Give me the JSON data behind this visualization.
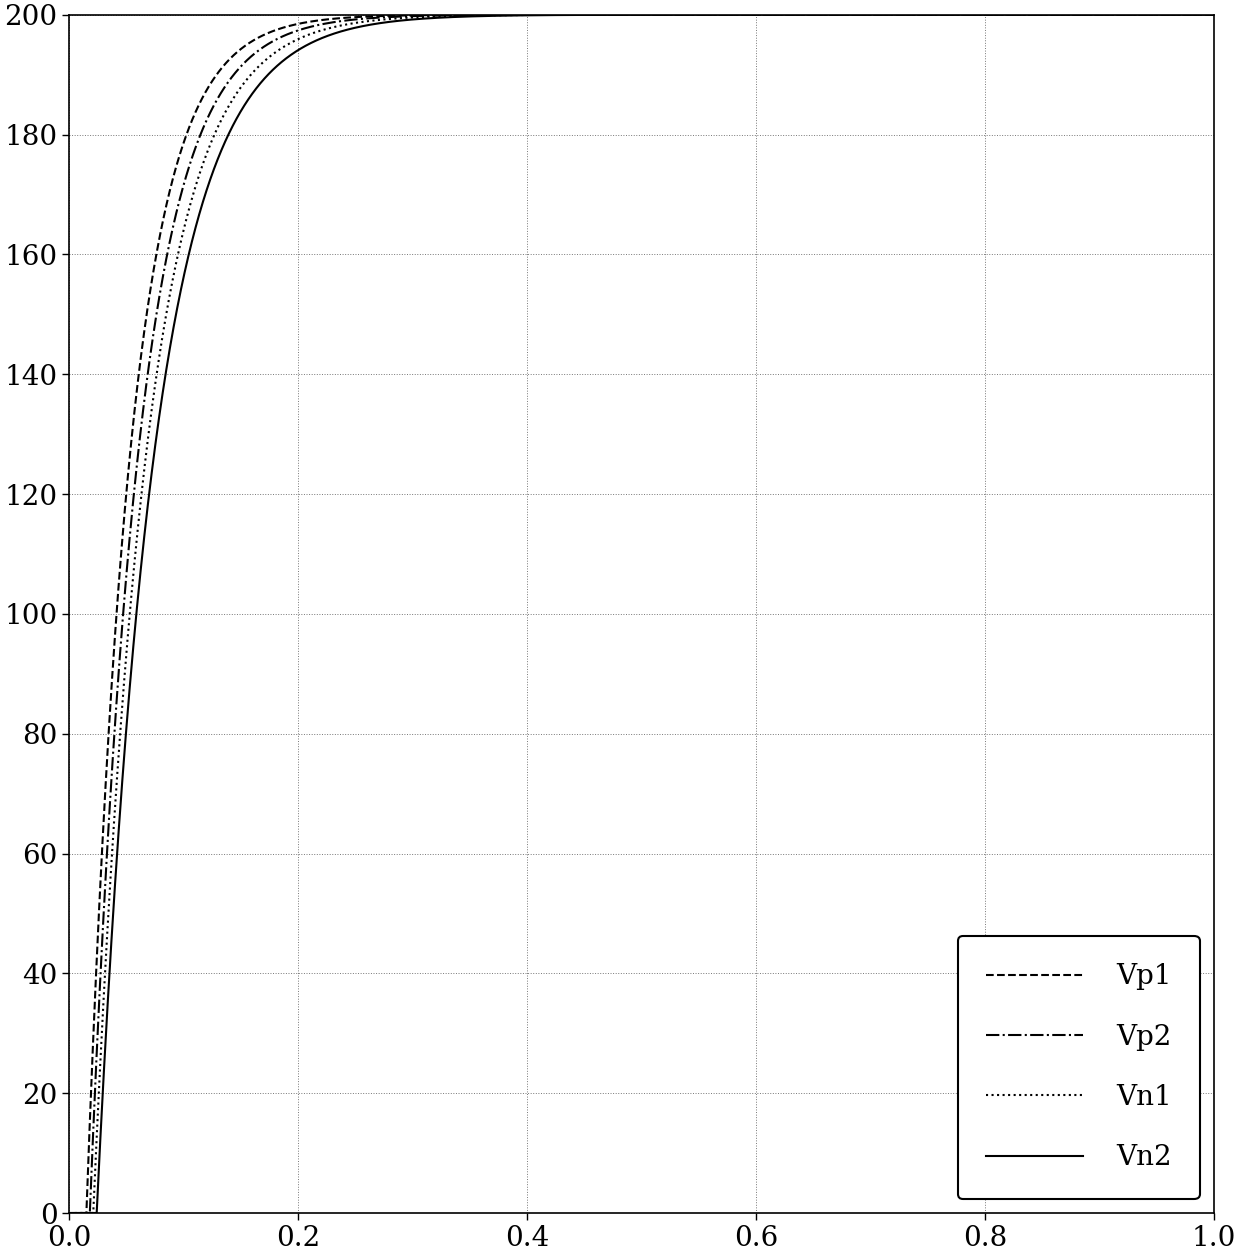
{
  "title": "",
  "xlabel": "",
  "ylabel": "",
  "xlim": [
    0.0,
    1.0
  ],
  "ylim": [
    0,
    200
  ],
  "yticks": [
    0,
    20,
    40,
    60,
    80,
    100,
    120,
    140,
    160,
    180,
    200
  ],
  "xticks": [
    0.0,
    0.2,
    0.4,
    0.6,
    0.8,
    1.0
  ],
  "xtick_labels": [
    "0.0",
    "0.2",
    "0.4",
    "0.6",
    "0.8",
    "1.0"
  ],
  "lines": [
    {
      "label": "Vp1",
      "style": "--",
      "color": "#000000",
      "lw": 1.5,
      "tau": 0.038,
      "delay": 0.015
    },
    {
      "label": "Vp2",
      "style": "-.",
      "color": "#000000",
      "lw": 1.5,
      "tau": 0.042,
      "delay": 0.018
    },
    {
      "label": "Vn1",
      "style": ":",
      "color": "#000000",
      "lw": 1.5,
      "tau": 0.046,
      "delay": 0.021
    },
    {
      "label": "Vn2",
      "style": "-",
      "color": "#000000",
      "lw": 1.5,
      "tau": 0.05,
      "delay": 0.024
    }
  ],
  "vmax": 200,
  "background_color": "#ffffff",
  "grid_color": "#555555",
  "grid_style": ":",
  "grid_lw": 0.7,
  "legend_fontsize": 20,
  "tick_fontsize": 20,
  "figsize": [
    12.4,
    12.56
  ],
  "dpi": 100
}
